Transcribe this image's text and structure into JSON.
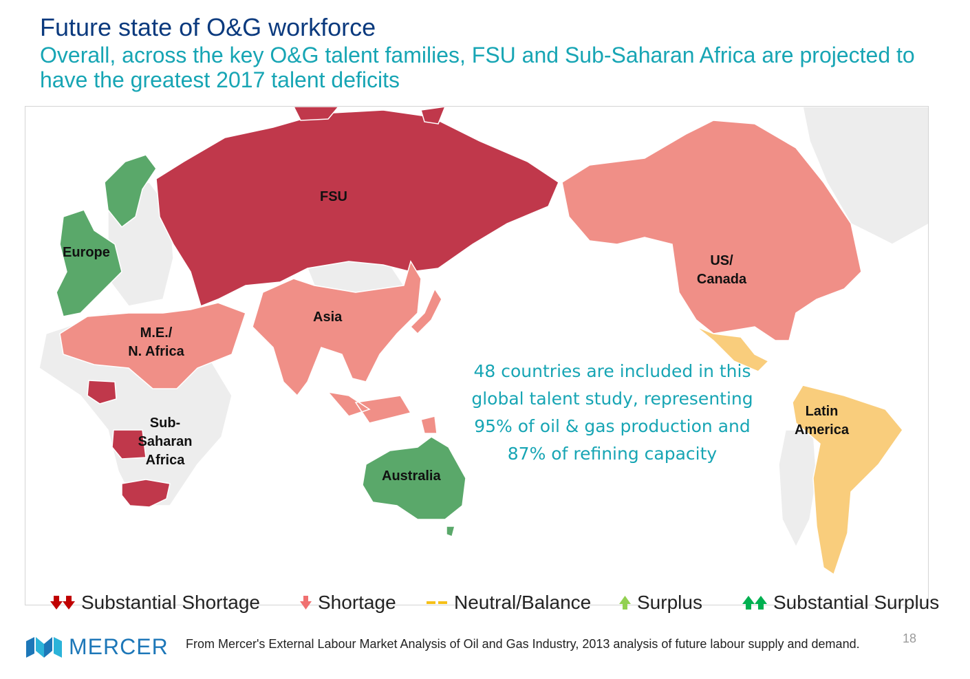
{
  "slide": {
    "title": "Future state of O&G workforce",
    "subtitle": "Overall, across the key O&G talent families, FSU and Sub-Saharan Africa are projected to have the greatest 2017 talent deficits"
  },
  "map": {
    "regions": [
      {
        "id": "fsu",
        "label": "FSU",
        "status": "Substantial Shortage"
      },
      {
        "id": "europe",
        "label": "Europe",
        "status": "Substantial Surplus"
      },
      {
        "id": "us-canada",
        "label_lines": [
          "US/",
          "Canada"
        ],
        "status": "Shortage"
      },
      {
        "id": "asia",
        "label": "Asia",
        "status": "Shortage"
      },
      {
        "id": "me-nafrica",
        "label_lines": [
          "M.E./",
          "N. Africa"
        ],
        "status": "Shortage"
      },
      {
        "id": "ss-africa",
        "label_lines": [
          "Sub-",
          "Saharan",
          "Africa"
        ],
        "status": "Substantial Shortage"
      },
      {
        "id": "latin-america",
        "label_lines": [
          "Latin",
          "America"
        ],
        "status": "Neutral/Balance"
      },
      {
        "id": "australia",
        "label": "Australia",
        "status": "Substantial Surplus"
      }
    ],
    "callout": [
      "48 countries are included in this",
      "global talent study, representing",
      "95% of oil & gas production and",
      "87% of refining capacity"
    ]
  },
  "legend": [
    {
      "label": "Substantial Shortage",
      "icon": "double-down-arrow-icon",
      "color": "#c00000"
    },
    {
      "label": "Shortage",
      "icon": "down-arrow-icon",
      "color": "#f07070"
    },
    {
      "label": "Neutral/Balance",
      "icon": "dash-icon",
      "color": "#f5c018"
    },
    {
      "label": "Surplus",
      "icon": "up-arrow-icon",
      "color": "#92d050"
    },
    {
      "label": "Substantial Surplus",
      "icon": "double-up-arrow-icon",
      "color": "#00b050"
    }
  ],
  "colors": {
    "substantial_shortage": "#c0384b",
    "shortage": "#f08f87",
    "neutral": "#f9cd7c",
    "substantial_surplus": "#5aa86a",
    "no_data": "#ededed",
    "title": "#0b3a7e",
    "accent": "#17a5b4"
  },
  "footer": {
    "brand": "MERCER",
    "source": "From Mercer's External Labour Market Analysis of Oil and Gas Industry, 2013 analysis of future labour supply and demand.",
    "page_number": "18"
  }
}
